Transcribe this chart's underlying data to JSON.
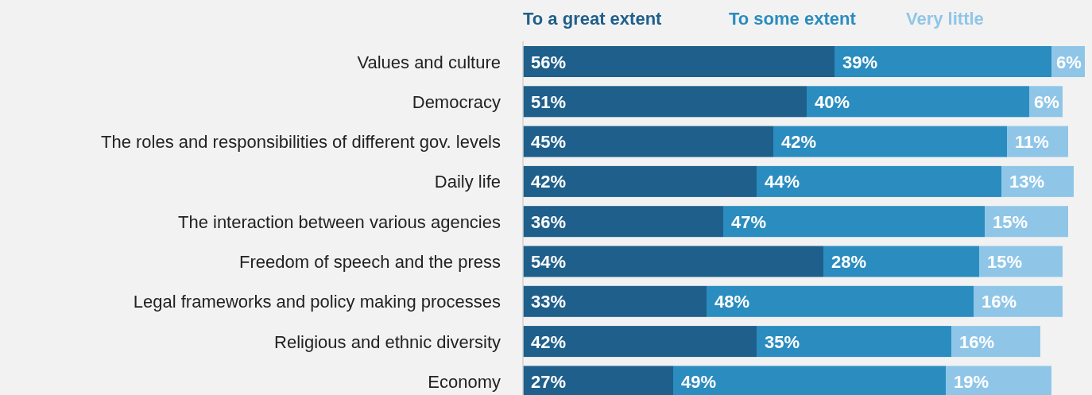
{
  "chart_data": {
    "type": "bar",
    "orientation": "horizontal",
    "stacked": true,
    "legend": "top",
    "categories": [
      "Values and culture",
      "Democracy",
      "The roles and responsibilities of different gov. levels",
      "Daily life",
      "The interaction between various agencies",
      "Freedom of speech and the press",
      "Legal frameworks and policy making processes",
      "Religious and ethnic diversity",
      "Economy"
    ],
    "series": [
      {
        "name": "To a great extent",
        "color": "#1f5f8b",
        "values": [
          56,
          51,
          45,
          42,
          36,
          54,
          33,
          42,
          27
        ],
        "value_labels": [
          "56%",
          "51%",
          "45%",
          "42%",
          "36%",
          "54%",
          "33%",
          "42%",
          "27%"
        ]
      },
      {
        "name": "To some extent",
        "color": "#2a8cbf",
        "values": [
          39,
          40,
          42,
          44,
          47,
          28,
          48,
          35,
          49
        ],
        "value_labels": [
          "39%",
          "40%",
          "42%",
          "44%",
          "47%",
          "28%",
          "48%",
          "35%",
          "49%"
        ]
      },
      {
        "name": "Very little",
        "color": "#8fc6e8",
        "values": [
          6,
          6,
          11,
          13,
          15,
          15,
          16,
          16,
          19
        ],
        "value_labels": [
          "6%",
          "6%",
          "11%",
          "13%",
          "15%",
          "15%",
          "16%",
          "16%",
          "19%"
        ]
      }
    ]
  }
}
